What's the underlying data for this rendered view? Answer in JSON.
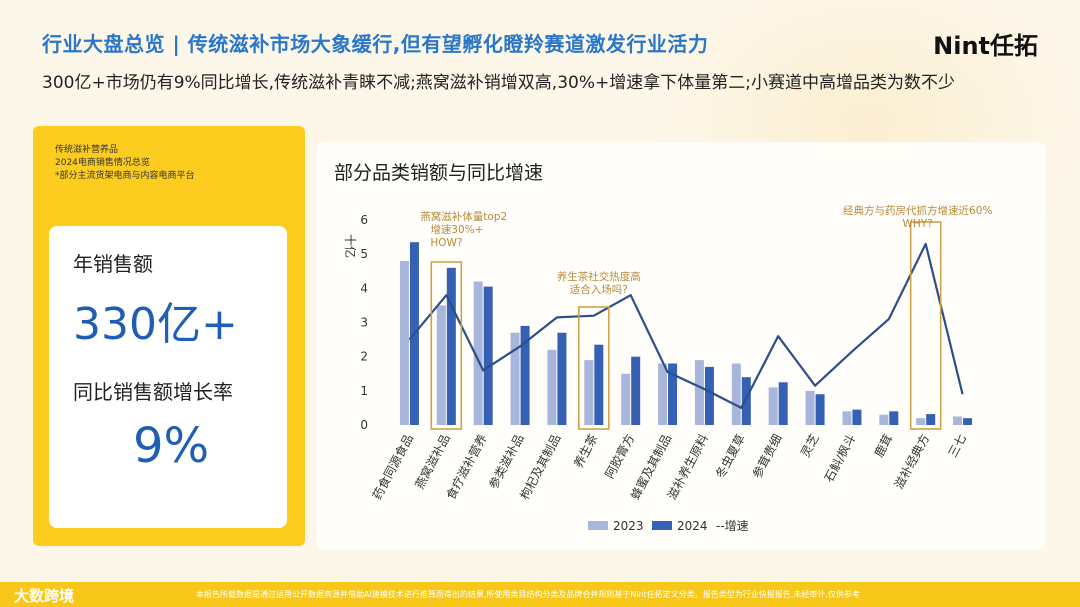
{
  "header": {
    "title": "行业大盘总览 | 传统滋补市场大象缓行,但有望孵化瞪羚赛道激发行业活力",
    "logo": "Nint任拓",
    "subtitle": "300亿+市场仍有9%同比增长,传统滋补青睐不减;燕窝滋补销增双高,30%+增速拿下体量第二;小赛道中高增品类为数不少"
  },
  "left_panel": {
    "note_line1": "传统滋补营养品",
    "note_line2": "2024电商销售情况总览",
    "note_line3": "*部分主流货架电商与内容电商平台",
    "sales_label": "年销售额",
    "sales_value": "330亿+",
    "growth_label": "同比销售额增长率",
    "growth_value": "9%"
  },
  "footer": {
    "brand": "大数跨境",
    "disclaimer": "本报告所载数据是通过运用公开数据资源并借助AI建模技术进行推算而得出的结果,所使用类目结构分类及品牌合并规则基于Nint任拓定义分类。报告类型为行业快报报告,未经审计,仅供参考"
  },
  "colors": {
    "bar2023": "#a9b6dc",
    "bar2024": "#3560b4",
    "growth_line": "#2d4f88",
    "highlight_box": "#cfa24a",
    "annotation": "#b88a3a"
  },
  "chart_data": {
    "type": "bar",
    "title": "部分品类销额与同比增速",
    "ylabel": "十亿",
    "ylim": [
      0,
      6
    ],
    "yticks": [
      0,
      1,
      2,
      3,
      4,
      5,
      6
    ],
    "categories": [
      "药食同源食品",
      "燕窝滋补品",
      "食疗滋补营养",
      "参类滋补品",
      "枸杞及其制品",
      "养生茶",
      "阿胶膏方",
      "蜂蜜及其制品",
      "滋补养生原料",
      "冬虫夏草",
      "参茸贵细",
      "灵芝",
      "石斛/枫斗",
      "鹿茸",
      "滋补经典方",
      "三七"
    ],
    "series": [
      {
        "name": "2023",
        "values": [
          4.8,
          3.5,
          4.2,
          2.7,
          2.2,
          1.9,
          1.5,
          1.8,
          1.9,
          1.8,
          1.1,
          1.0,
          0.4,
          0.3,
          0.2,
          0.25
        ]
      },
      {
        "name": "2024",
        "values": [
          5.35,
          4.6,
          4.05,
          2.9,
          2.7,
          2.35,
          2.0,
          1.8,
          1.7,
          1.4,
          1.25,
          0.9,
          0.45,
          0.4,
          0.32,
          0.2
        ]
      }
    ],
    "line_series": {
      "name": "--增速",
      "values": [
        2.5,
        3.8,
        1.6,
        2.3,
        3.15,
        3.2,
        3.8,
        1.55,
        1.05,
        0.5,
        2.6,
        1.15,
        2.15,
        3.1,
        5.3,
        0.9
      ]
    },
    "legend": [
      "2023",
      "2024",
      "--增速"
    ],
    "highlights": [
      1,
      5,
      14
    ],
    "annotations": [
      {
        "lines": [
          "燕窝滋补体量top2",
          "增速30%+",
          "HOW?"
        ],
        "target": 1
      },
      {
        "lines": [
          "养生茶社交热度高",
          "适合入场吗?"
        ],
        "target": 5
      },
      {
        "lines": [
          "经典方与药房代抓方增速近60%",
          "WHY?"
        ],
        "target": 14
      }
    ]
  }
}
